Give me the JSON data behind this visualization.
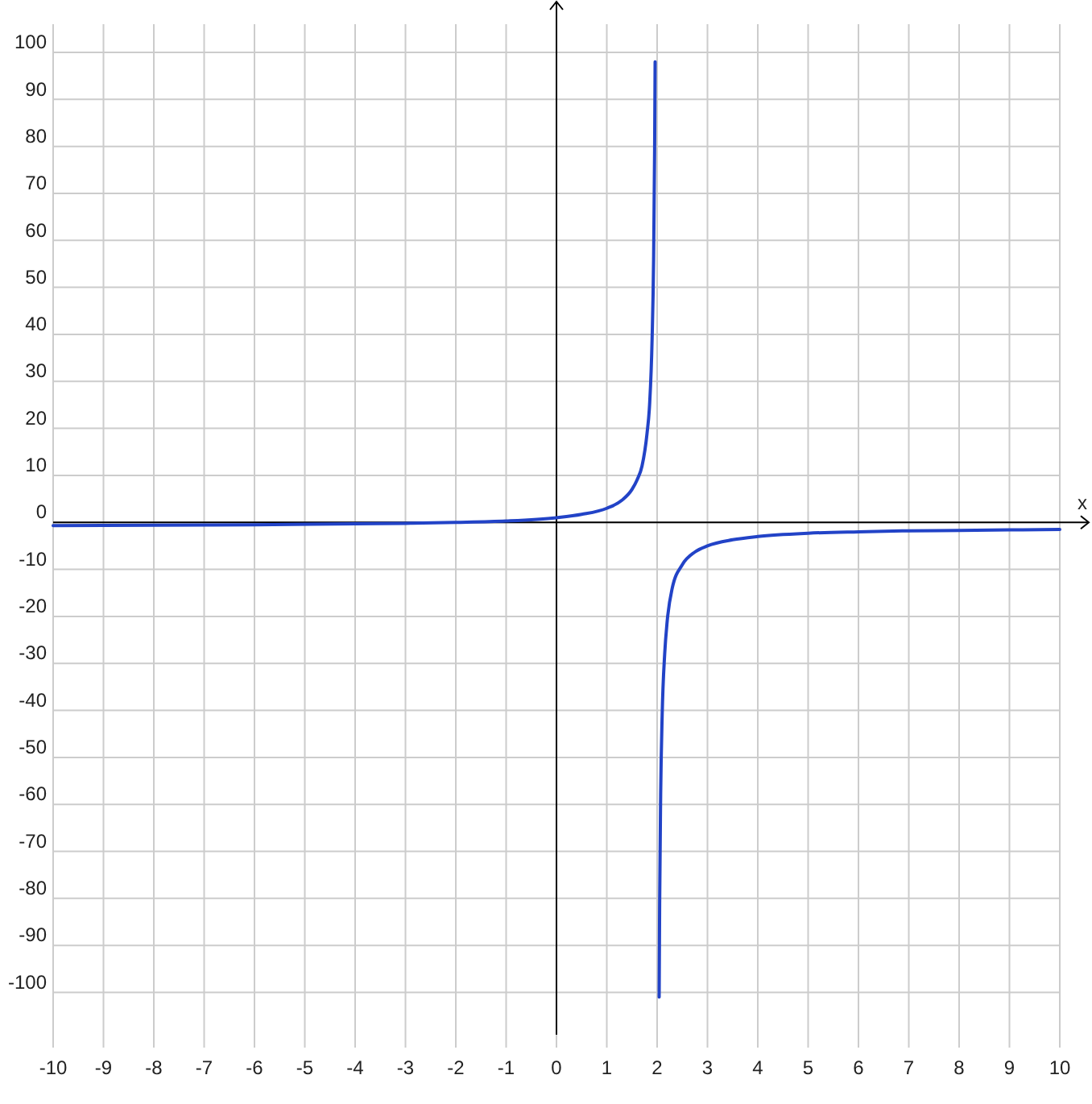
{
  "chart_data": {
    "type": "line",
    "xlabel": "x",
    "xlim": [
      -10,
      10
    ],
    "ylim": [
      -109,
      106
    ],
    "xticks": [
      -10,
      -9,
      -8,
      -7,
      -6,
      -5,
      -4,
      -3,
      -2,
      -1,
      0,
      1,
      2,
      3,
      4,
      5,
      6,
      7,
      8,
      9,
      10
    ],
    "yticks": [
      -100,
      -90,
      -80,
      -70,
      -60,
      -50,
      -40,
      -30,
      -20,
      -10,
      0,
      10,
      20,
      30,
      40,
      50,
      60,
      70,
      80,
      90,
      100
    ],
    "grid": true,
    "marker": "none",
    "line_style": "solid",
    "series": [
      {
        "color": "#2243c7",
        "x": [
          -10,
          -8,
          -6,
          -4,
          -3,
          -2,
          -1,
          0,
          0.5,
          1,
          1.3,
          1.5,
          1.6,
          1.7,
          1.8,
          1.85,
          1.9,
          1.93,
          1.95,
          1.96
        ],
        "values": [
          -0.7,
          -0.6,
          -0.5,
          -0.3,
          -0.2,
          0,
          0.3,
          1,
          1.7,
          3,
          4.7,
          7,
          9,
          12,
          19,
          25,
          39,
          56,
          79,
          98
        ]
      },
      {
        "color": "#2243c7",
        "x": [
          2.04,
          2.05,
          2.07,
          2.1,
          2.15,
          2.2,
          2.3,
          2.5,
          2.75,
          3,
          3.5,
          4,
          5,
          6,
          7,
          8,
          10
        ],
        "values": [
          -101,
          -81,
          -58,
          -41,
          -28,
          -21,
          -14,
          -9,
          -6.3,
          -5,
          -3.7,
          -3,
          -2.3,
          -2,
          -1.8,
          -1.7,
          -1.5
        ]
      }
    ]
  }
}
